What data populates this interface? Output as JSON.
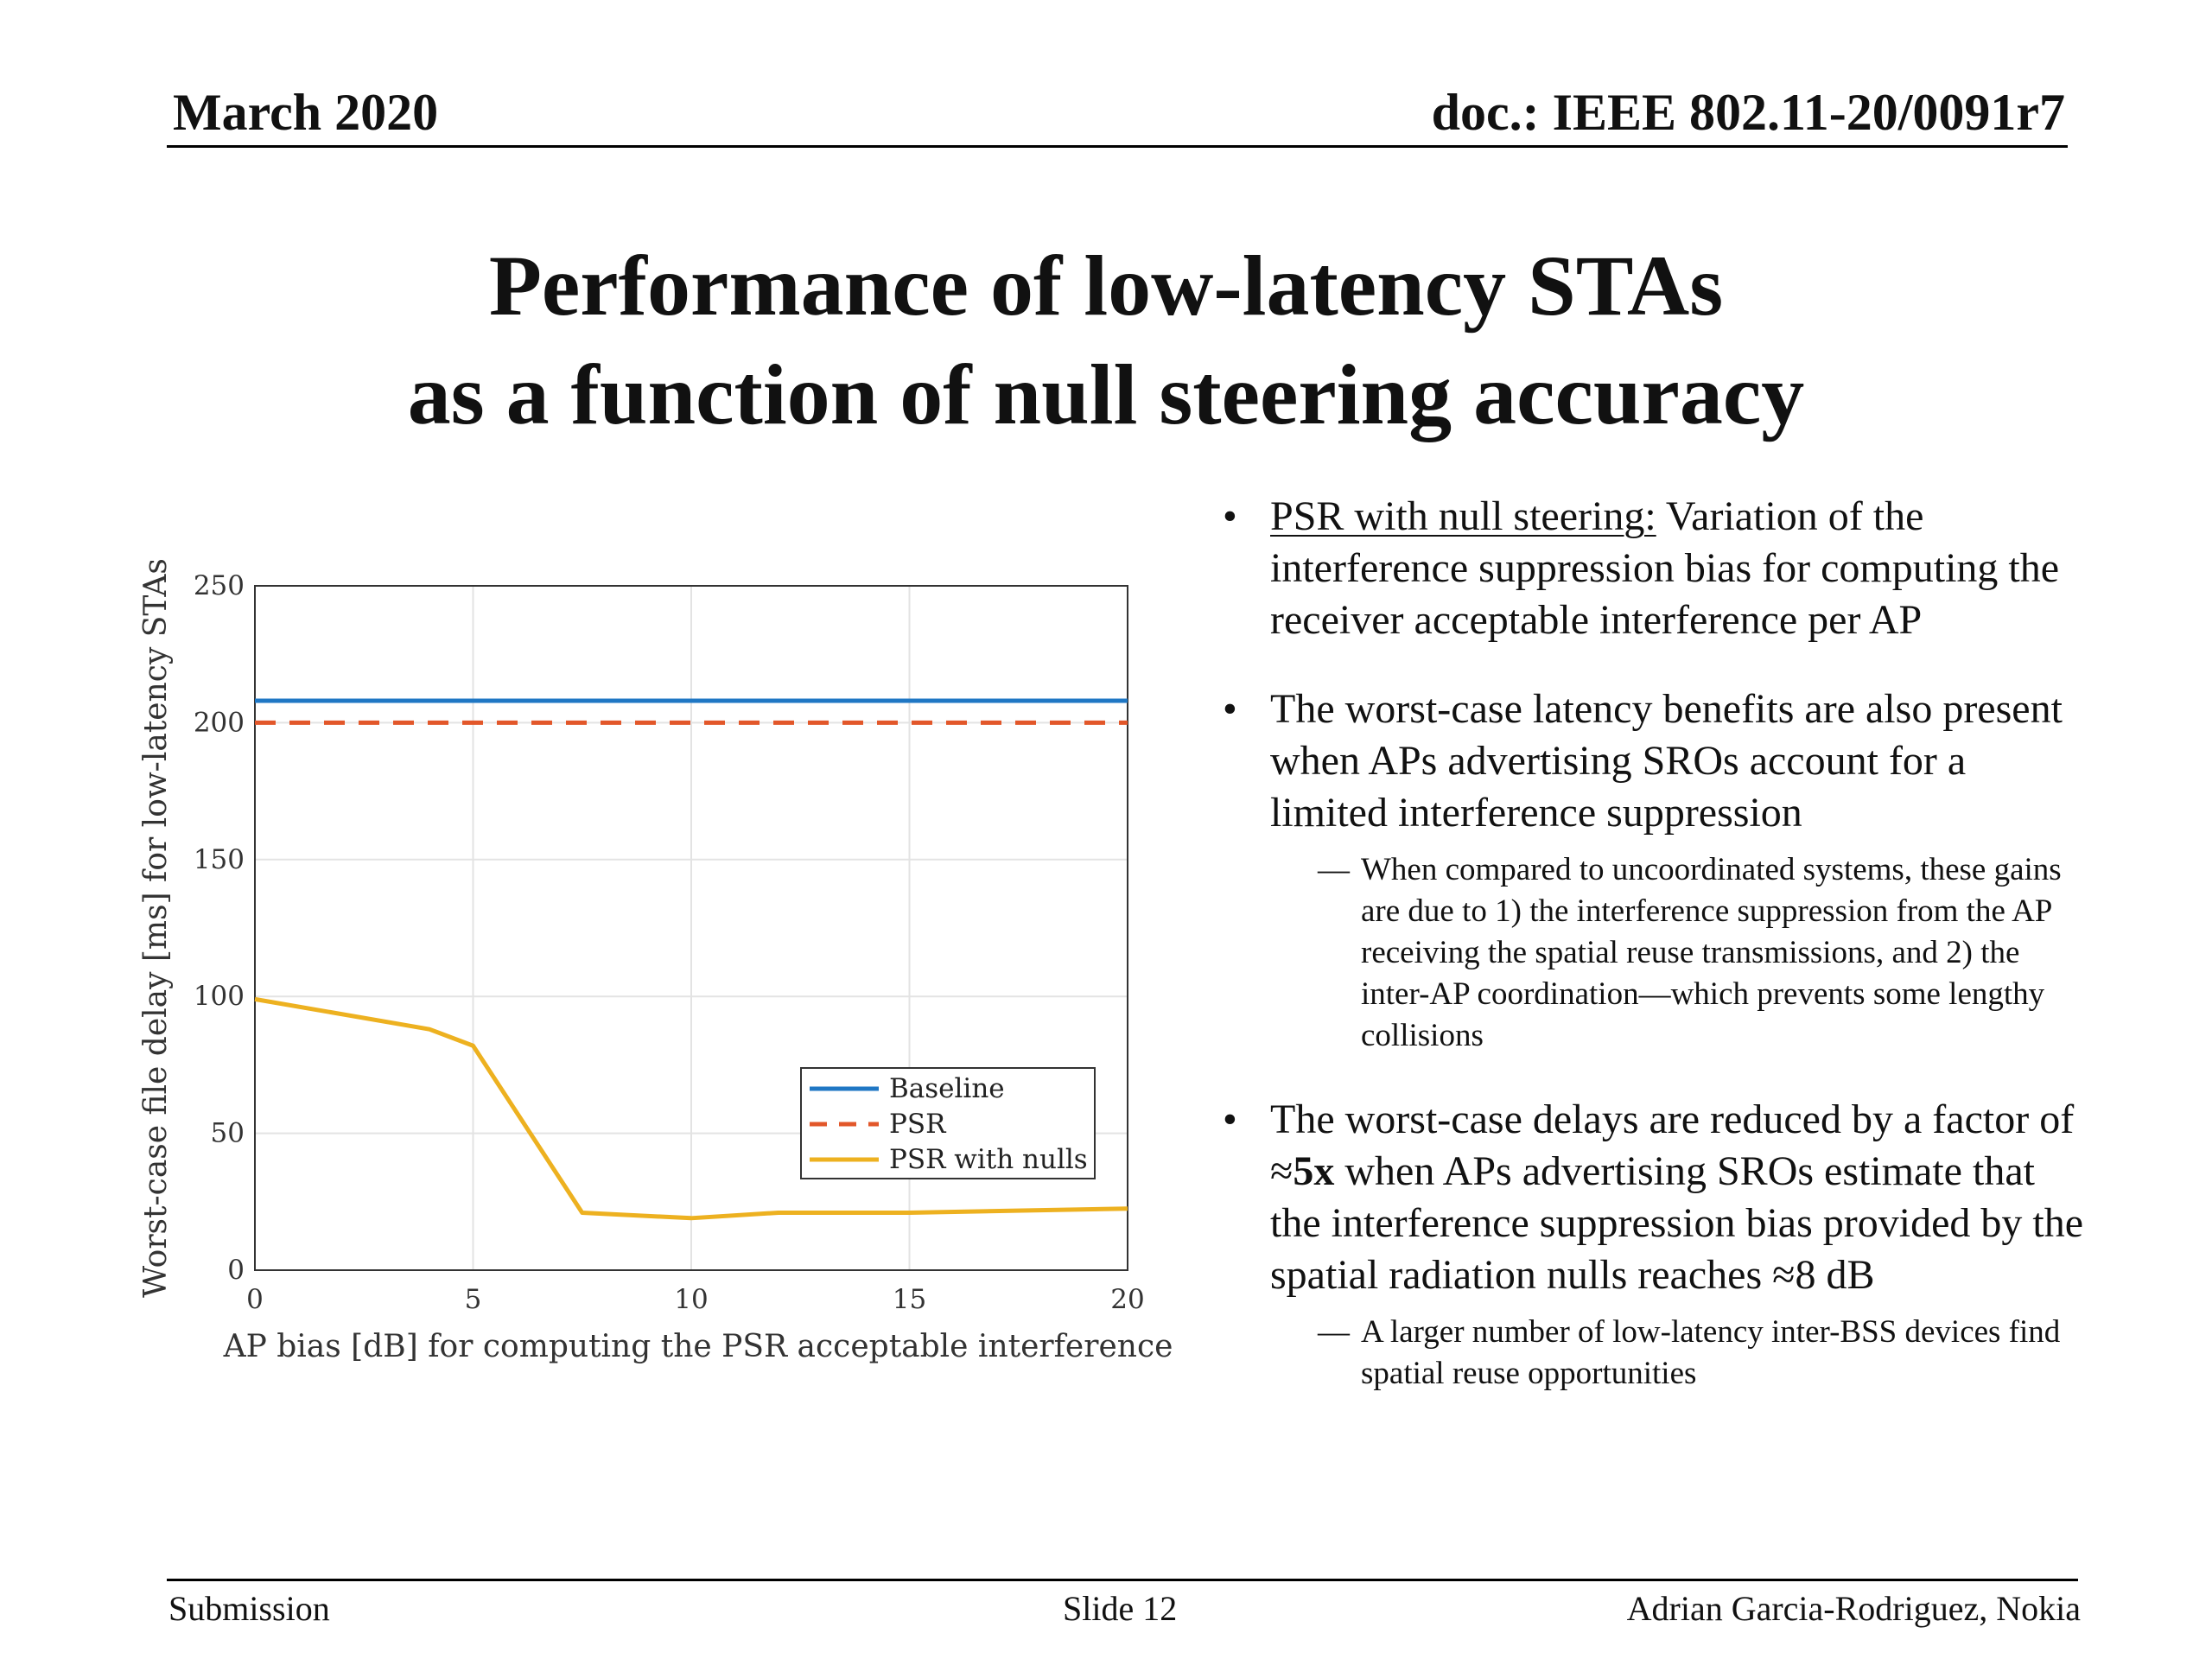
{
  "header": {
    "date": "March 2020",
    "doc": "doc.: IEEE 802.11-20/0091r7"
  },
  "title": {
    "line1": "Performance of low-latency STAs",
    "line2": "as a function of null steering accuracy"
  },
  "bullets": [
    {
      "lead": "PSR with null steering:",
      "text": " Variation of the interference suppression bias for computing the receiver acceptable interference per AP",
      "sub": []
    },
    {
      "lead": "",
      "text": "The worst-case latency benefits are also present when APs advertising SROs account for a limited interference suppression",
      "sub": [
        "When compared to uncoordinated systems, these gains are due to 1) the interference suppression from the AP receiving the spatial reuse transmissions, and 2) the inter-AP coordination—which prevents some lengthy collisions"
      ]
    },
    {
      "lead": "",
      "text_before": "The worst-case delays are reduced by a factor of ≈",
      "bold": "5x",
      "text_after": " when APs advertising SROs estimate that the interference suppression bias provided by the spatial radiation nulls reaches ≈8 dB",
      "sub": [
        "A larger number of low-latency inter-BSS devices find spatial reuse opportunities"
      ]
    }
  ],
  "symbols": {
    "bullet": "•",
    "dash": "—"
  },
  "footer": {
    "left": "Submission",
    "center": "Slide 12",
    "right": "Adrian Garcia-Rodriguez, Nokia"
  },
  "chart_data": {
    "type": "line",
    "xlabel": "AP bias [dB] for computing the PSR acceptable interference",
    "ylabel": "Worst-case file delay [ms] for low-latency STAs",
    "xlim": [
      0,
      20
    ],
    "ylim": [
      0,
      250
    ],
    "xticks": [
      0,
      5,
      10,
      15,
      20
    ],
    "yticks": [
      0,
      50,
      100,
      150,
      200,
      250
    ],
    "grid": true,
    "legend_position": "bottom-right",
    "series": [
      {
        "name": "Baseline",
        "color": "#1f77c4",
        "style": "solid",
        "x": [
          0,
          20
        ],
        "y": [
          208,
          208
        ]
      },
      {
        "name": "PSR",
        "color": "#e2572a",
        "style": "dashed",
        "x": [
          0,
          20
        ],
        "y": [
          200,
          200
        ]
      },
      {
        "name": "PSR with nulls",
        "color": "#edb120",
        "style": "solid",
        "x": [
          0,
          4,
          5,
          7.5,
          10,
          12,
          15,
          20
        ],
        "y": [
          99,
          88,
          82,
          21,
          19,
          21,
          21,
          22.5
        ]
      }
    ]
  }
}
